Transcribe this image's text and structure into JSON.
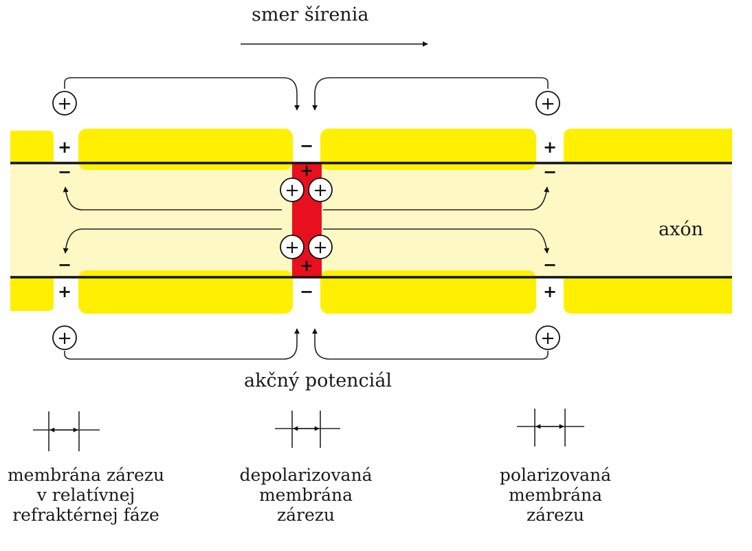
{
  "labels": {
    "propagation": "smer šírenia",
    "axon": "axón",
    "action_potential": "akčný potenciál"
  },
  "captions": {
    "refractory": [
      "membrána zárezu",
      "v relatívnej",
      "refraktérnej fáze"
    ],
    "depolarized": [
      "depolarizovaná",
      "membrána",
      "zárezu"
    ],
    "polarized": [
      "polarizovaná",
      "membrána",
      "zárezu"
    ]
  },
  "charges": {
    "plus": "+",
    "minus": "−"
  },
  "colors": {
    "myelin": "#ffef00",
    "axoplasm": "#fdf8c4",
    "depolarized": "#e8101e",
    "line": "#111111"
  }
}
